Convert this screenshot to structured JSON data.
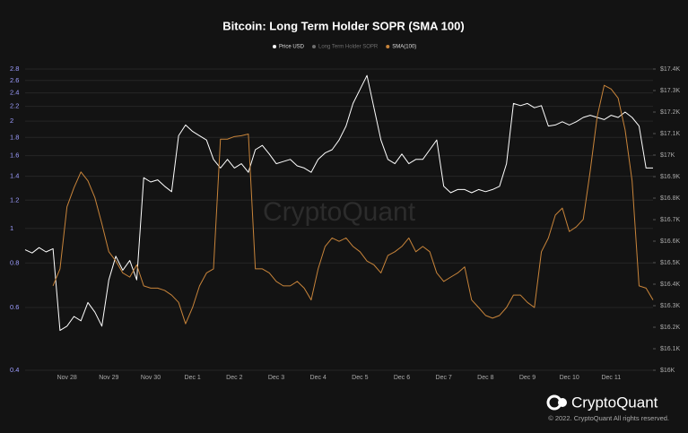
{
  "chart_data": {
    "type": "line",
    "title": "Bitcoin: Long Term Holder SOPR (SMA 100)",
    "watermark": "CryptoQuant",
    "brand": "CryptoQuant",
    "copyright": "© 2022. CryptoQuant All rights reserved.",
    "yscale": "log",
    "grid": true,
    "legend": "top",
    "categories": [
      null,
      null,
      null,
      null,
      null,
      null,
      "Nov 28",
      null,
      null,
      null,
      null,
      null,
      "Nov 29",
      null,
      null,
      null,
      null,
      null,
      "Nov 30",
      null,
      null,
      null,
      null,
      null,
      "Dec 1",
      null,
      null,
      null,
      null,
      null,
      "Dec 2",
      null,
      null,
      null,
      null,
      null,
      "Dec 3",
      null,
      null,
      null,
      null,
      null,
      "Dec 4",
      null,
      null,
      null,
      null,
      null,
      "Dec 5",
      null,
      null,
      null,
      null,
      null,
      "Dec 6",
      null,
      null,
      null,
      null,
      null,
      "Dec 7",
      null,
      null,
      null,
      null,
      null,
      "Dec 8",
      null,
      null,
      null,
      null,
      null,
      "Dec 9",
      null,
      null,
      null,
      null,
      null,
      "Dec 10",
      null,
      null,
      null,
      null,
      null,
      "Dec 11",
      null,
      null,
      null,
      null,
      null,
      null
    ],
    "series": [
      {
        "name": "Price USD",
        "color": "#ffffff",
        "axis": "y2",
        "values": [
          16560,
          16545,
          16570,
          16550,
          16565,
          16185,
          16205,
          16250,
          16230,
          16315,
          16270,
          16205,
          16420,
          16530,
          16465,
          16510,
          16420,
          16895,
          16875,
          16885,
          16855,
          16830,
          17090,
          17140,
          17110,
          17090,
          17070,
          16980,
          16940,
          16980,
          16940,
          16960,
          16920,
          17025,
          17045,
          17005,
          16960,
          16970,
          16980,
          16950,
          16940,
          16920,
          16980,
          17010,
          17025,
          17070,
          17135,
          17240,
          17305,
          17370,
          17220,
          17070,
          16980,
          16960,
          17005,
          16960,
          16980,
          16980,
          17025,
          17070,
          16855,
          16825,
          16840,
          16840,
          16825,
          16840,
          16830,
          16840,
          16855,
          16960,
          17240,
          17230,
          17240,
          17220,
          17230,
          17135,
          17140,
          17155,
          17140,
          17155,
          17175,
          17185,
          17175,
          17165,
          17185,
          17175,
          17200,
          17175,
          17135,
          16940,
          16940
        ]
      },
      {
        "name": "Long Term Holder SOPR",
        "color": "#6e6e6e",
        "visible": false
      },
      {
        "name": "SMA(100)",
        "color": "#c8843a",
        "axis": "y",
        "values": [
          null,
          null,
          null,
          null,
          0.69,
          0.77,
          1.15,
          1.3,
          1.44,
          1.36,
          1.22,
          1.03,
          0.86,
          0.81,
          0.75,
          0.73,
          0.79,
          0.69,
          0.68,
          0.68,
          0.67,
          0.65,
          0.62,
          0.54,
          0.6,
          0.69,
          0.75,
          0.77,
          1.78,
          1.78,
          1.81,
          1.82,
          1.84,
          0.77,
          0.77,
          0.75,
          0.71,
          0.69,
          0.69,
          0.71,
          0.68,
          0.63,
          0.77,
          0.89,
          0.94,
          0.92,
          0.94,
          0.89,
          0.86,
          0.81,
          0.79,
          0.75,
          0.84,
          0.86,
          0.89,
          0.94,
          0.86,
          0.89,
          0.86,
          0.75,
          0.71,
          0.73,
          0.75,
          0.78,
          0.63,
          0.6,
          0.57,
          0.56,
          0.57,
          0.6,
          0.65,
          0.65,
          0.62,
          0.6,
          0.86,
          0.94,
          1.09,
          1.14,
          0.98,
          1.01,
          1.06,
          1.45,
          2.06,
          2.52,
          2.46,
          2.32,
          1.89,
          1.36,
          0.69,
          0.68,
          0.63
        ]
      }
    ],
    "ylim": [
      0.4,
      2.8
    ],
    "yticks": [
      0.4,
      0.6,
      0.8,
      1,
      1.2,
      1.4,
      1.6,
      1.8,
      2,
      2.2,
      2.4,
      2.6,
      2.8
    ],
    "y2lim": [
      16000,
      17400
    ],
    "y2ticks": [
      {
        "value": 16000,
        "label": "$16K"
      },
      {
        "value": 16100,
        "label": "$16.1K"
      },
      {
        "value": 16200,
        "label": "$16.2K"
      },
      {
        "value": 16300,
        "label": "$16.3K"
      },
      {
        "value": 16400,
        "label": "$16.4K"
      },
      {
        "value": 16500,
        "label": "$16.5K"
      },
      {
        "value": 16600,
        "label": "$16.6K"
      },
      {
        "value": 16700,
        "label": "$16.7K"
      },
      {
        "value": 16800,
        "label": "$16.8K"
      },
      {
        "value": 16900,
        "label": "$16.9K"
      },
      {
        "value": 17000,
        "label": "$17K"
      },
      {
        "value": 17100,
        "label": "$17.1K"
      },
      {
        "value": 17200,
        "label": "$17.2K"
      },
      {
        "value": 17300,
        "label": "$17.3K"
      },
      {
        "value": 17400,
        "label": "$17.4K"
      }
    ]
  }
}
